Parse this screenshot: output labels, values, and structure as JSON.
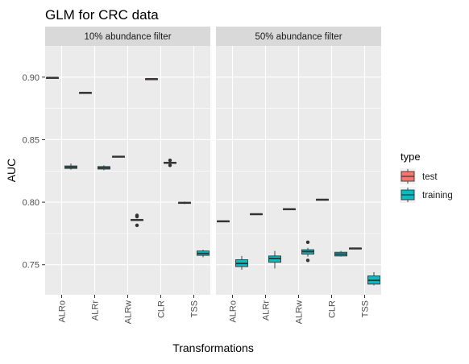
{
  "chart_data": {
    "type": "box",
    "title": "GLM for CRC data",
    "xlabel": "Transformations",
    "ylabel": "AUC",
    "ylim": [
      0.726,
      0.925
    ],
    "yticks": [
      0.75,
      0.8,
      0.85,
      0.9
    ],
    "ytick_labels": [
      "0.75",
      "0.80",
      "0.85",
      "0.90"
    ],
    "categories": [
      "ALRo",
      "ALRr",
      "ALRw",
      "CLR",
      "TSS"
    ],
    "grid": true,
    "legend": {
      "title": "type",
      "position": "right",
      "entries": [
        {
          "key": "test",
          "label": "test",
          "color": "#F8766D"
        },
        {
          "key": "training",
          "label": "training",
          "color": "#00BFC4"
        }
      ]
    },
    "panels": [
      {
        "strip": "10% abundance filter",
        "boxes": [
          {
            "category": "ALRo",
            "type": "test",
            "min": 0.8995,
            "q1": 0.8996,
            "median": 0.8997,
            "q3": 0.8998,
            "max": 0.8999,
            "outliers": []
          },
          {
            "category": "ALRo",
            "type": "training",
            "min": 0.826,
            "q1": 0.827,
            "median": 0.828,
            "q3": 0.829,
            "max": 0.831,
            "outliers": []
          },
          {
            "category": "ALRr",
            "type": "test",
            "min": 0.8875,
            "q1": 0.8876,
            "median": 0.8877,
            "q3": 0.8878,
            "max": 0.8879,
            "outliers": []
          },
          {
            "category": "ALRr",
            "type": "training",
            "min": 0.8255,
            "q1": 0.8265,
            "median": 0.8275,
            "q3": 0.8285,
            "max": 0.8295,
            "outliers": []
          },
          {
            "category": "ALRw",
            "type": "test",
            "min": 0.8362,
            "q1": 0.8364,
            "median": 0.8366,
            "q3": 0.8368,
            "max": 0.837,
            "outliers": []
          },
          {
            "category": "ALRw",
            "type": "training",
            "min": 0.7858,
            "q1": 0.7859,
            "median": 0.786,
            "q3": 0.7862,
            "max": 0.7864,
            "outliers": [
              0.7815,
              0.7885,
              0.7895
            ]
          },
          {
            "category": "CLR",
            "type": "test",
            "min": 0.8985,
            "q1": 0.8986,
            "median": 0.8987,
            "q3": 0.8988,
            "max": 0.8989,
            "outliers": []
          },
          {
            "category": "CLR",
            "type": "training",
            "min": 0.8305,
            "q1": 0.831,
            "median": 0.8315,
            "q3": 0.832,
            "max": 0.8325,
            "outliers": [
              0.8335,
              0.8295
            ]
          },
          {
            "category": "TSS",
            "type": "test",
            "min": 0.7985,
            "q1": 0.799,
            "median": 0.7995,
            "q3": 0.8,
            "max": 0.8005,
            "outliers": []
          },
          {
            "category": "TSS",
            "type": "training",
            "min": 0.756,
            "q1": 0.7575,
            "median": 0.759,
            "q3": 0.761,
            "max": 0.762,
            "outliers": []
          }
        ]
      },
      {
        "strip": "50% abundance filter",
        "boxes": [
          {
            "category": "ALRo",
            "type": "test",
            "min": 0.7845,
            "q1": 0.7847,
            "median": 0.7849,
            "q3": 0.7851,
            "max": 0.7853,
            "outliers": []
          },
          {
            "category": "ALRo",
            "type": "training",
            "min": 0.746,
            "q1": 0.7485,
            "median": 0.751,
            "q3": 0.754,
            "max": 0.757,
            "outliers": []
          },
          {
            "category": "ALRr",
            "type": "test",
            "min": 0.7902,
            "q1": 0.7904,
            "median": 0.7906,
            "q3": 0.7908,
            "max": 0.791,
            "outliers": []
          },
          {
            "category": "ALRr",
            "type": "training",
            "min": 0.747,
            "q1": 0.752,
            "median": 0.755,
            "q3": 0.757,
            "max": 0.761,
            "outliers": []
          },
          {
            "category": "ALRw",
            "type": "test",
            "min": 0.7942,
            "q1": 0.7944,
            "median": 0.7946,
            "q3": 0.7948,
            "max": 0.795,
            "outliers": []
          },
          {
            "category": "ALRw",
            "type": "training",
            "min": 0.7565,
            "q1": 0.7585,
            "median": 0.7605,
            "q3": 0.762,
            "max": 0.7635,
            "outliers": [
              0.768,
              0.7535
            ]
          },
          {
            "category": "CLR",
            "type": "test",
            "min": 0.8018,
            "q1": 0.802,
            "median": 0.8022,
            "q3": 0.8024,
            "max": 0.8026,
            "outliers": []
          },
          {
            "category": "CLR",
            "type": "training",
            "min": 0.7565,
            "q1": 0.757,
            "median": 0.7585,
            "q3": 0.76,
            "max": 0.761,
            "outliers": []
          },
          {
            "category": "TSS",
            "type": "test",
            "min": 0.7628,
            "q1": 0.763,
            "median": 0.7632,
            "q3": 0.7634,
            "max": 0.7636,
            "outliers": []
          },
          {
            "category": "TSS",
            "type": "training",
            "min": 0.7335,
            "q1": 0.7345,
            "median": 0.7375,
            "q3": 0.741,
            "max": 0.744,
            "outliers": []
          }
        ]
      }
    ]
  }
}
